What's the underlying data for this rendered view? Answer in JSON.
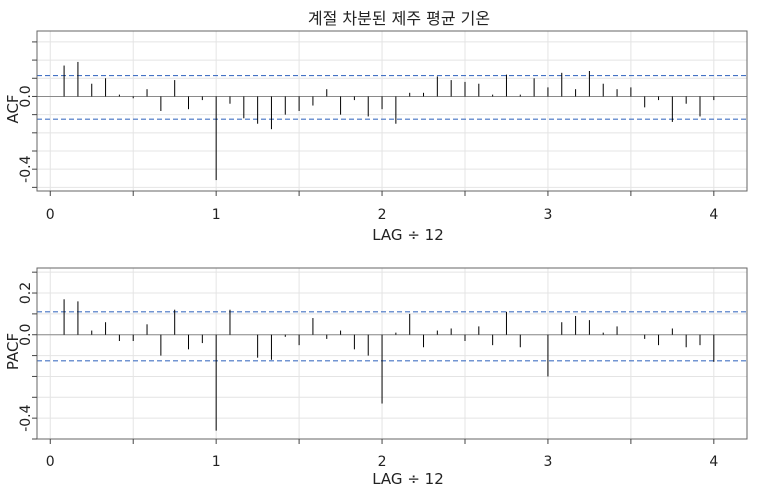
{
  "chart_data": [
    {
      "type": "bar",
      "title": "계절 차분된 제주 평균 기온",
      "ylabel": "ACF",
      "xlabel": "LAG ÷ 12",
      "xlim": [
        -0.08,
        4.2
      ],
      "ylim": [
        -0.52,
        0.36
      ],
      "x_ticks": [
        "0",
        "1",
        "2",
        "3",
        "4"
      ],
      "y_ticks": [
        "-0.4",
        "0.0"
      ],
      "confidence_bounds": [
        0.115,
        -0.125
      ],
      "lags": [
        0.0833,
        0.1667,
        0.25,
        0.3333,
        0.4167,
        0.5,
        0.5833,
        0.6667,
        0.75,
        0.8333,
        0.9167,
        1.0,
        1.0833,
        1.1667,
        1.25,
        1.3333,
        1.4167,
        1.5,
        1.5833,
        1.6667,
        1.75,
        1.8333,
        1.9167,
        2.0,
        2.0833,
        2.1667,
        2.25,
        2.3333,
        2.4167,
        2.5,
        2.5833,
        2.6667,
        2.75,
        2.8333,
        2.9167,
        3.0,
        3.0833,
        3.1667,
        3.25,
        3.3333,
        3.4167,
        3.5,
        3.5833,
        3.6667,
        3.75,
        3.8333,
        3.9167,
        4.0
      ],
      "values": [
        0.17,
        0.19,
        0.07,
        0.1,
        0.01,
        -0.01,
        0.04,
        -0.08,
        0.09,
        -0.07,
        -0.02,
        -0.46,
        -0.04,
        -0.12,
        -0.15,
        -0.18,
        -0.1,
        -0.08,
        -0.05,
        0.04,
        -0.1,
        -0.02,
        -0.11,
        -0.07,
        -0.15,
        0.02,
        0.02,
        0.11,
        0.09,
        0.08,
        0.07,
        0.01,
        0.12,
        0.01,
        0.1,
        0.05,
        0.13,
        0.04,
        0.14,
        0.07,
        0.04,
        0.05,
        -0.06,
        -0.02,
        -0.14,
        -0.04,
        -0.11,
        -0.02
      ]
    },
    {
      "type": "bar",
      "title": "",
      "ylabel": "PACF",
      "xlabel": "LAG ÷ 12",
      "xlim": [
        -0.08,
        4.2
      ],
      "ylim": [
        -0.5,
        0.32
      ],
      "x_ticks": [
        "0",
        "1",
        "2",
        "3",
        "4"
      ],
      "y_ticks": [
        "-0.4",
        "0.0",
        "0.2"
      ],
      "confidence_bounds": [
        0.11,
        -0.125
      ],
      "lags": [
        0.0833,
        0.1667,
        0.25,
        0.3333,
        0.4167,
        0.5,
        0.5833,
        0.6667,
        0.75,
        0.8333,
        0.9167,
        1.0,
        1.0833,
        1.1667,
        1.25,
        1.3333,
        1.4167,
        1.5,
        1.5833,
        1.6667,
        1.75,
        1.8333,
        1.9167,
        2.0,
        2.0833,
        2.1667,
        2.25,
        2.3333,
        2.4167,
        2.5,
        2.5833,
        2.6667,
        2.75,
        2.8333,
        2.9167,
        3.0,
        3.0833,
        3.1667,
        3.25,
        3.3333,
        3.4167,
        3.5,
        3.5833,
        3.6667,
        3.75,
        3.8333,
        3.9167,
        4.0
      ],
      "values": [
        0.17,
        0.16,
        0.02,
        0.06,
        -0.03,
        -0.03,
        0.05,
        -0.1,
        0.12,
        -0.07,
        -0.04,
        -0.46,
        0.12,
        0.0,
        -0.11,
        -0.12,
        -0.01,
        -0.05,
        0.08,
        -0.02,
        0.02,
        -0.07,
        -0.1,
        -0.33,
        0.01,
        0.1,
        -0.06,
        0.02,
        0.03,
        -0.03,
        0.04,
        -0.05,
        0.11,
        -0.06,
        0.0,
        -0.2,
        0.06,
        0.09,
        0.07,
        0.01,
        0.04,
        0.0,
        -0.02,
        -0.05,
        0.03,
        -0.06,
        -0.05,
        -0.13
      ]
    }
  ]
}
